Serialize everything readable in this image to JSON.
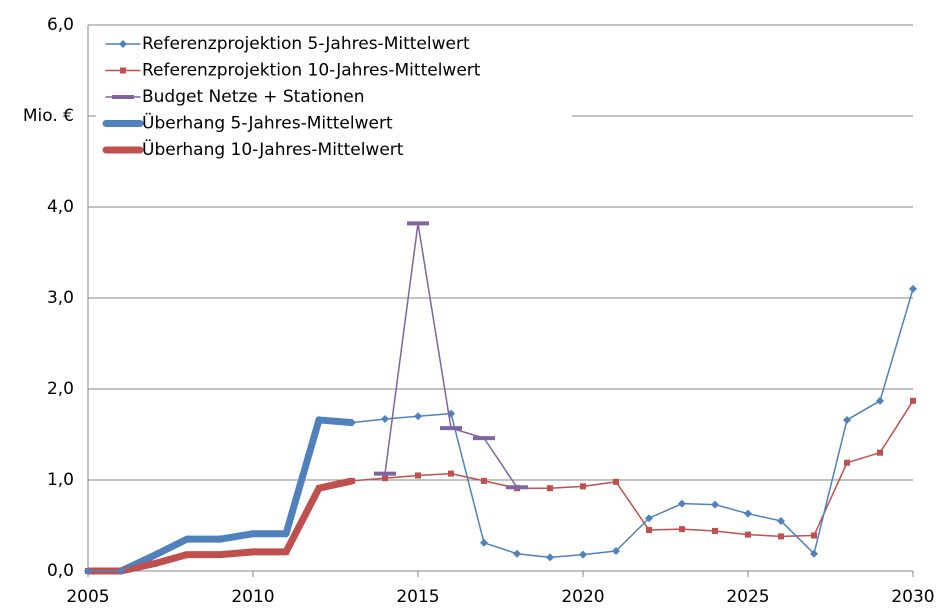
{
  "chart_data": {
    "type": "line",
    "x": [
      2005,
      2006,
      2007,
      2008,
      2009,
      2010,
      2011,
      2012,
      2013,
      2014,
      2015,
      2016,
      2017,
      2018,
      2019,
      2020,
      2021,
      2022,
      2023,
      2024,
      2025,
      2026,
      2027,
      2028,
      2029,
      2030
    ],
    "series": [
      {
        "name": "Referenzprojektion 5-Jahres-Mittelwert",
        "color": "#4f81bd",
        "width": 1.5,
        "marker": "diamond",
        "values": [
          0,
          0,
          0.17,
          0.35,
          0.35,
          0.41,
          0.41,
          1.66,
          1.63,
          1.67,
          1.7,
          1.73,
          0.31,
          0.19,
          0.15,
          0.18,
          0.22,
          0.58,
          0.74,
          0.73,
          0.63,
          0.55,
          0.19,
          1.66,
          1.87,
          3.1
        ]
      },
      {
        "name": "Referenzprojektion 10-Jahres-Mittelwert",
        "color": "#c0504d",
        "width": 1.5,
        "marker": "square",
        "values": [
          0,
          0,
          0.08,
          0.18,
          0.18,
          0.21,
          0.21,
          0.91,
          0.99,
          1.02,
          1.05,
          1.07,
          0.99,
          0.91,
          0.91,
          0.93,
          0.98,
          0.45,
          0.46,
          0.44,
          0.4,
          0.38,
          0.39,
          1.19,
          1.3,
          1.87
        ]
      },
      {
        "name": "Budget Netze + Stationen",
        "color": "#8064a2",
        "width": 1.5,
        "marker": "dash",
        "values": [
          null,
          null,
          null,
          null,
          null,
          null,
          null,
          null,
          null,
          1.07,
          3.82,
          1.57,
          1.46,
          0.92,
          null,
          null,
          null,
          null,
          null,
          null,
          null,
          null,
          null,
          null,
          null,
          null
        ]
      },
      {
        "name": "Überhang 5-Jahres-Mittelwert",
        "color": "#4f81bd",
        "width": 7,
        "marker": "none",
        "values": [
          0,
          0,
          0.17,
          0.35,
          0.35,
          0.41,
          0.41,
          1.66,
          1.63,
          null,
          null,
          null,
          null,
          null,
          null,
          null,
          null,
          null,
          null,
          null,
          null,
          null,
          null,
          null,
          null,
          null
        ]
      },
      {
        "name": "Überhang 10-Jahres-Mittelwert",
        "color": "#c0504d",
        "width": 7,
        "marker": "none",
        "values": [
          0,
          0,
          0.08,
          0.18,
          0.18,
          0.21,
          0.21,
          0.91,
          0.99,
          null,
          null,
          null,
          null,
          null,
          null,
          null,
          null,
          null,
          null,
          null,
          null,
          null,
          null,
          null,
          null,
          null
        ]
      }
    ],
    "xlim": [
      2005,
      2030
    ],
    "xticks": [
      2005,
      2010,
      2015,
      2020,
      2025,
      2030
    ],
    "ylim": [
      0,
      6
    ],
    "yticks": [
      {
        "value": 0,
        "label": "0,0"
      },
      {
        "value": 1,
        "label": "1,0"
      },
      {
        "value": 2,
        "label": "2,0"
      },
      {
        "value": 3,
        "label": "3,0"
      },
      {
        "value": 4,
        "label": "4,0"
      },
      {
        "value": 5,
        "label": "Mio. €"
      },
      {
        "value": 6,
        "label": "6,0"
      }
    ],
    "grid": true,
    "legend": "upper left"
  }
}
